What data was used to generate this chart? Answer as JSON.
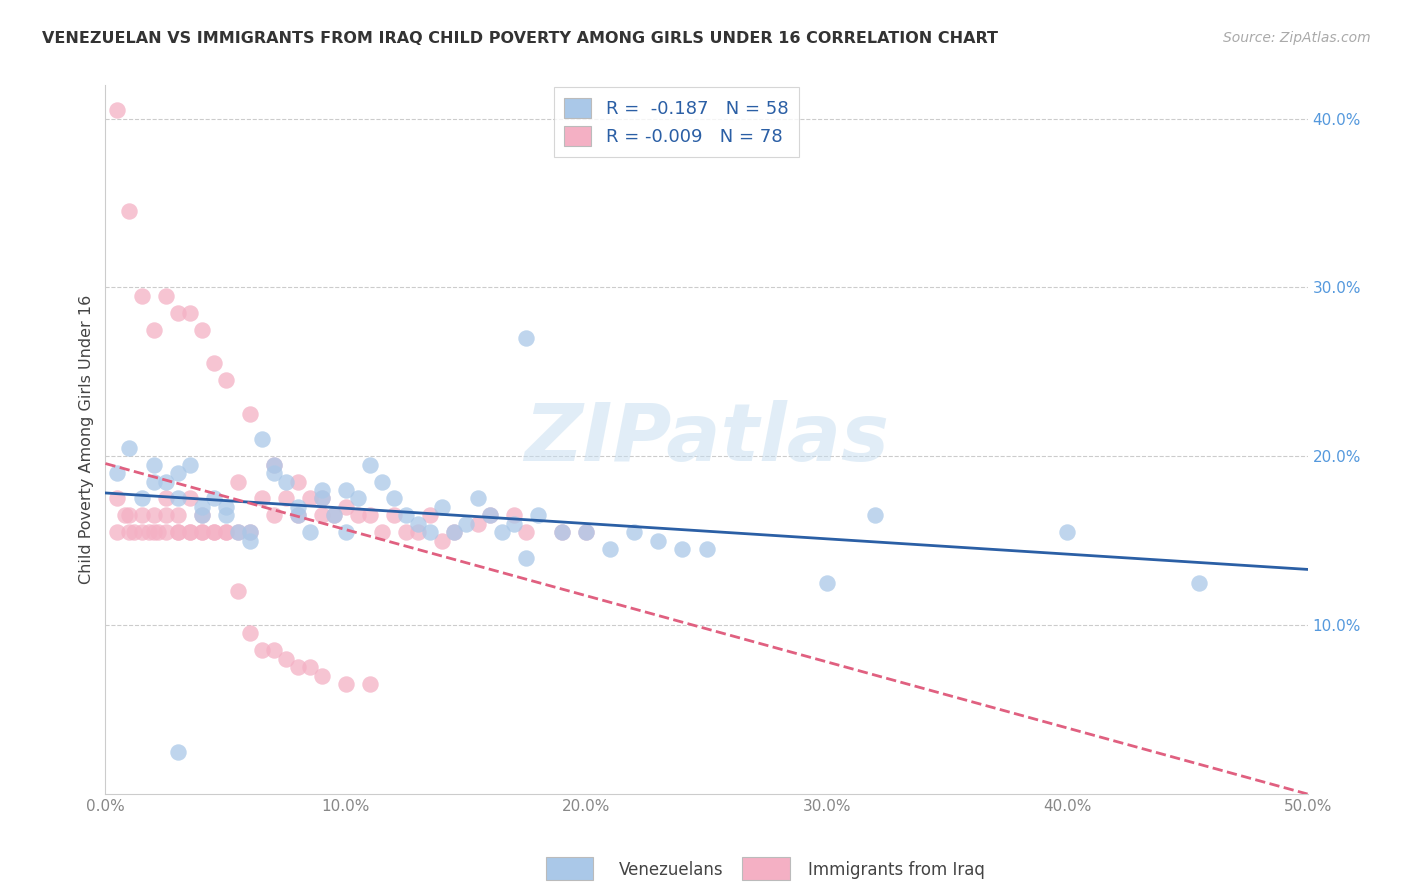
{
  "title": "VENEZUELAN VS IMMIGRANTS FROM IRAQ CHILD POVERTY AMONG GIRLS UNDER 16 CORRELATION CHART",
  "source": "Source: ZipAtlas.com",
  "ylabel": "Child Poverty Among Girls Under 16",
  "xlim": [
    0.0,
    0.5
  ],
  "ylim": [
    0.0,
    0.42
  ],
  "xtick_vals": [
    0.0,
    0.1,
    0.2,
    0.3,
    0.4,
    0.5
  ],
  "xticklabels": [
    "0.0%",
    "10.0%",
    "20.0%",
    "30.0%",
    "40.0%",
    "50.0%"
  ],
  "yticks_right": [
    0.1,
    0.2,
    0.3,
    0.4
  ],
  "yticklabels_right": [
    "10.0%",
    "20.0%",
    "30.0%",
    "40.0%"
  ],
  "legend_labels_bottom": [
    "Venezuelans",
    "Immigrants from Iraq"
  ],
  "blue_color": "#aac8e8",
  "pink_color": "#f4b0c4",
  "blue_line_color": "#2b5fa5",
  "pink_line_color": "#e06080",
  "r_blue": "-0.187",
  "n_blue": "58",
  "r_pink": "-0.009",
  "n_pink": "78",
  "watermark": "ZIPatlas",
  "grid_color": "#cccccc",
  "title_color": "#333333",
  "source_color": "#aaaaaa",
  "right_tick_color": "#5599dd",
  "blue_scatter_x": [
    0.005,
    0.01,
    0.015,
    0.02,
    0.02,
    0.025,
    0.03,
    0.03,
    0.035,
    0.04,
    0.04,
    0.045,
    0.05,
    0.05,
    0.055,
    0.06,
    0.06,
    0.065,
    0.07,
    0.07,
    0.075,
    0.08,
    0.08,
    0.085,
    0.09,
    0.09,
    0.095,
    0.1,
    0.1,
    0.105,
    0.11,
    0.115,
    0.12,
    0.125,
    0.13,
    0.135,
    0.14,
    0.145,
    0.15,
    0.155,
    0.16,
    0.165,
    0.17,
    0.175,
    0.175,
    0.18,
    0.19,
    0.2,
    0.21,
    0.22,
    0.23,
    0.24,
    0.25,
    0.3,
    0.32,
    0.4,
    0.455,
    0.03
  ],
  "blue_scatter_y": [
    0.19,
    0.205,
    0.175,
    0.185,
    0.195,
    0.185,
    0.175,
    0.19,
    0.195,
    0.165,
    0.17,
    0.175,
    0.17,
    0.165,
    0.155,
    0.15,
    0.155,
    0.21,
    0.19,
    0.195,
    0.185,
    0.165,
    0.17,
    0.155,
    0.18,
    0.175,
    0.165,
    0.18,
    0.155,
    0.175,
    0.195,
    0.185,
    0.175,
    0.165,
    0.16,
    0.155,
    0.17,
    0.155,
    0.16,
    0.175,
    0.165,
    0.155,
    0.16,
    0.27,
    0.14,
    0.165,
    0.155,
    0.155,
    0.145,
    0.155,
    0.15,
    0.145,
    0.145,
    0.125,
    0.165,
    0.155,
    0.125,
    0.025
  ],
  "pink_scatter_x": [
    0.005,
    0.005,
    0.008,
    0.01,
    0.01,
    0.012,
    0.015,
    0.015,
    0.018,
    0.02,
    0.02,
    0.022,
    0.025,
    0.025,
    0.025,
    0.03,
    0.03,
    0.03,
    0.035,
    0.035,
    0.035,
    0.04,
    0.04,
    0.04,
    0.045,
    0.045,
    0.05,
    0.05,
    0.055,
    0.055,
    0.06,
    0.06,
    0.065,
    0.07,
    0.07,
    0.075,
    0.08,
    0.08,
    0.085,
    0.09,
    0.09,
    0.095,
    0.1,
    0.105,
    0.11,
    0.115,
    0.12,
    0.125,
    0.13,
    0.135,
    0.14,
    0.145,
    0.155,
    0.16,
    0.17,
    0.175,
    0.19,
    0.2,
    0.005,
    0.01,
    0.015,
    0.02,
    0.025,
    0.03,
    0.035,
    0.04,
    0.045,
    0.05,
    0.055,
    0.06,
    0.065,
    0.07,
    0.075,
    0.08,
    0.085,
    0.09,
    0.1,
    0.11
  ],
  "pink_scatter_y": [
    0.405,
    0.175,
    0.165,
    0.345,
    0.165,
    0.155,
    0.295,
    0.165,
    0.155,
    0.275,
    0.165,
    0.155,
    0.295,
    0.175,
    0.165,
    0.285,
    0.165,
    0.155,
    0.285,
    0.175,
    0.155,
    0.275,
    0.165,
    0.155,
    0.255,
    0.155,
    0.245,
    0.155,
    0.185,
    0.155,
    0.225,
    0.155,
    0.175,
    0.195,
    0.165,
    0.175,
    0.185,
    0.165,
    0.175,
    0.175,
    0.165,
    0.165,
    0.17,
    0.165,
    0.165,
    0.155,
    0.165,
    0.155,
    0.155,
    0.165,
    0.15,
    0.155,
    0.16,
    0.165,
    0.165,
    0.155,
    0.155,
    0.155,
    0.155,
    0.155,
    0.155,
    0.155,
    0.155,
    0.155,
    0.155,
    0.155,
    0.155,
    0.155,
    0.12,
    0.095,
    0.085,
    0.085,
    0.08,
    0.075,
    0.075,
    0.07,
    0.065,
    0.065
  ]
}
